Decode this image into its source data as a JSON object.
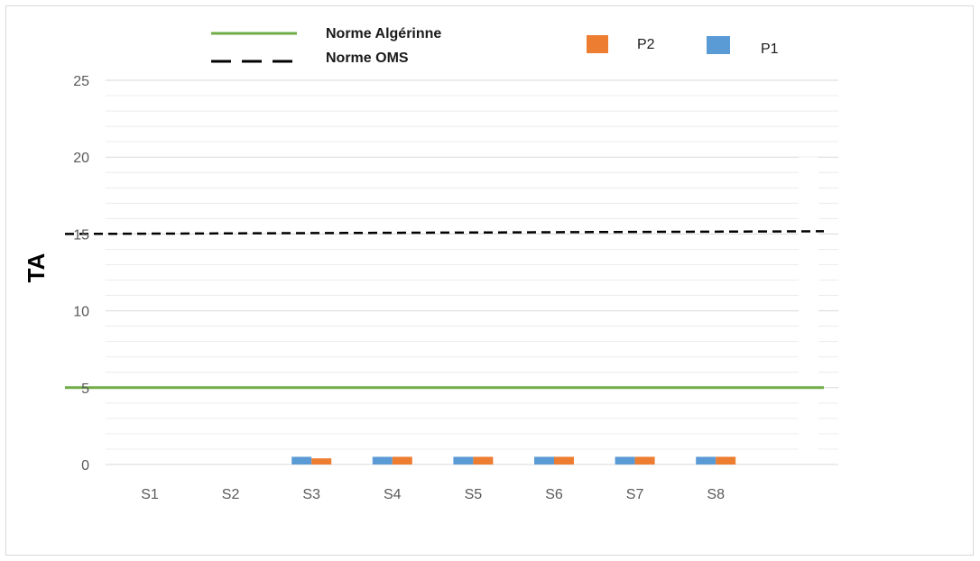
{
  "chart_data": {
    "type": "bar",
    "title": "",
    "xlabel": "",
    "ylabel": "TA",
    "ylim": [
      0,
      25
    ],
    "yticks": [
      0,
      5,
      10,
      15,
      20,
      25
    ],
    "minor_grid_step": 1,
    "grid": true,
    "categories": [
      "S1",
      "S2",
      "S3",
      "S4",
      "S5",
      "S6",
      "S7",
      "S8"
    ],
    "series": [
      {
        "name": "P1",
        "color": "#5b9bd5",
        "values": [
          0,
          0,
          0.5,
          0.5,
          0.5,
          0.5,
          0.5,
          0.5
        ]
      },
      {
        "name": "P2",
        "color": "#ed7d31",
        "values": [
          0,
          0,
          0.4,
          0.5,
          0.5,
          0.5,
          0.5,
          0.5
        ]
      }
    ],
    "reference_lines": [
      {
        "name": "Norme Algérinne",
        "value": 5,
        "color": "#70ad47",
        "style": "solid"
      },
      {
        "name": "Norme OMS",
        "value": 15,
        "color": "#000000",
        "style": "dashed"
      }
    ],
    "legend": {
      "placement": "top",
      "lines": [
        "Norme Algérinne",
        "Norme OMS"
      ],
      "bars": [
        "P2",
        "P1"
      ]
    }
  }
}
